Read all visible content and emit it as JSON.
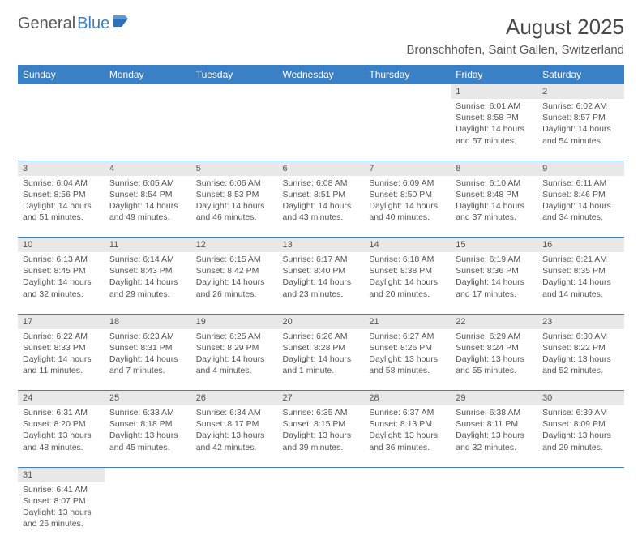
{
  "logo": {
    "text_a": "General",
    "text_b": "Blue"
  },
  "title": "August 2025",
  "location": "Bronschhofen, Saint Gallen, Switzerland",
  "colors": {
    "header_bg": "#3b7fc4",
    "header_text": "#ffffff",
    "daynum_bg": "#e8e8e8",
    "cell_border": "#3b7fc4",
    "body_text": "#555555",
    "page_bg": "#ffffff"
  },
  "day_headers": [
    "Sunday",
    "Monday",
    "Tuesday",
    "Wednesday",
    "Thursday",
    "Friday",
    "Saturday"
  ],
  "weeks": [
    [
      null,
      null,
      null,
      null,
      null,
      {
        "n": "1",
        "sr": "Sunrise: 6:01 AM",
        "ss": "Sunset: 8:58 PM",
        "dl": "Daylight: 14 hours and 57 minutes."
      },
      {
        "n": "2",
        "sr": "Sunrise: 6:02 AM",
        "ss": "Sunset: 8:57 PM",
        "dl": "Daylight: 14 hours and 54 minutes."
      }
    ],
    [
      {
        "n": "3",
        "sr": "Sunrise: 6:04 AM",
        "ss": "Sunset: 8:56 PM",
        "dl": "Daylight: 14 hours and 51 minutes."
      },
      {
        "n": "4",
        "sr": "Sunrise: 6:05 AM",
        "ss": "Sunset: 8:54 PM",
        "dl": "Daylight: 14 hours and 49 minutes."
      },
      {
        "n": "5",
        "sr": "Sunrise: 6:06 AM",
        "ss": "Sunset: 8:53 PM",
        "dl": "Daylight: 14 hours and 46 minutes."
      },
      {
        "n": "6",
        "sr": "Sunrise: 6:08 AM",
        "ss": "Sunset: 8:51 PM",
        "dl": "Daylight: 14 hours and 43 minutes."
      },
      {
        "n": "7",
        "sr": "Sunrise: 6:09 AM",
        "ss": "Sunset: 8:50 PM",
        "dl": "Daylight: 14 hours and 40 minutes."
      },
      {
        "n": "8",
        "sr": "Sunrise: 6:10 AM",
        "ss": "Sunset: 8:48 PM",
        "dl": "Daylight: 14 hours and 37 minutes."
      },
      {
        "n": "9",
        "sr": "Sunrise: 6:11 AM",
        "ss": "Sunset: 8:46 PM",
        "dl": "Daylight: 14 hours and 34 minutes."
      }
    ],
    [
      {
        "n": "10",
        "sr": "Sunrise: 6:13 AM",
        "ss": "Sunset: 8:45 PM",
        "dl": "Daylight: 14 hours and 32 minutes."
      },
      {
        "n": "11",
        "sr": "Sunrise: 6:14 AM",
        "ss": "Sunset: 8:43 PM",
        "dl": "Daylight: 14 hours and 29 minutes."
      },
      {
        "n": "12",
        "sr": "Sunrise: 6:15 AM",
        "ss": "Sunset: 8:42 PM",
        "dl": "Daylight: 14 hours and 26 minutes."
      },
      {
        "n": "13",
        "sr": "Sunrise: 6:17 AM",
        "ss": "Sunset: 8:40 PM",
        "dl": "Daylight: 14 hours and 23 minutes."
      },
      {
        "n": "14",
        "sr": "Sunrise: 6:18 AM",
        "ss": "Sunset: 8:38 PM",
        "dl": "Daylight: 14 hours and 20 minutes."
      },
      {
        "n": "15",
        "sr": "Sunrise: 6:19 AM",
        "ss": "Sunset: 8:36 PM",
        "dl": "Daylight: 14 hours and 17 minutes."
      },
      {
        "n": "16",
        "sr": "Sunrise: 6:21 AM",
        "ss": "Sunset: 8:35 PM",
        "dl": "Daylight: 14 hours and 14 minutes."
      }
    ],
    [
      {
        "n": "17",
        "sr": "Sunrise: 6:22 AM",
        "ss": "Sunset: 8:33 PM",
        "dl": "Daylight: 14 hours and 11 minutes."
      },
      {
        "n": "18",
        "sr": "Sunrise: 6:23 AM",
        "ss": "Sunset: 8:31 PM",
        "dl": "Daylight: 14 hours and 7 minutes."
      },
      {
        "n": "19",
        "sr": "Sunrise: 6:25 AM",
        "ss": "Sunset: 8:29 PM",
        "dl": "Daylight: 14 hours and 4 minutes."
      },
      {
        "n": "20",
        "sr": "Sunrise: 6:26 AM",
        "ss": "Sunset: 8:28 PM",
        "dl": "Daylight: 14 hours and 1 minute."
      },
      {
        "n": "21",
        "sr": "Sunrise: 6:27 AM",
        "ss": "Sunset: 8:26 PM",
        "dl": "Daylight: 13 hours and 58 minutes."
      },
      {
        "n": "22",
        "sr": "Sunrise: 6:29 AM",
        "ss": "Sunset: 8:24 PM",
        "dl": "Daylight: 13 hours and 55 minutes."
      },
      {
        "n": "23",
        "sr": "Sunrise: 6:30 AM",
        "ss": "Sunset: 8:22 PM",
        "dl": "Daylight: 13 hours and 52 minutes."
      }
    ],
    [
      {
        "n": "24",
        "sr": "Sunrise: 6:31 AM",
        "ss": "Sunset: 8:20 PM",
        "dl": "Daylight: 13 hours and 48 minutes."
      },
      {
        "n": "25",
        "sr": "Sunrise: 6:33 AM",
        "ss": "Sunset: 8:18 PM",
        "dl": "Daylight: 13 hours and 45 minutes."
      },
      {
        "n": "26",
        "sr": "Sunrise: 6:34 AM",
        "ss": "Sunset: 8:17 PM",
        "dl": "Daylight: 13 hours and 42 minutes."
      },
      {
        "n": "27",
        "sr": "Sunrise: 6:35 AM",
        "ss": "Sunset: 8:15 PM",
        "dl": "Daylight: 13 hours and 39 minutes."
      },
      {
        "n": "28",
        "sr": "Sunrise: 6:37 AM",
        "ss": "Sunset: 8:13 PM",
        "dl": "Daylight: 13 hours and 36 minutes."
      },
      {
        "n": "29",
        "sr": "Sunrise: 6:38 AM",
        "ss": "Sunset: 8:11 PM",
        "dl": "Daylight: 13 hours and 32 minutes."
      },
      {
        "n": "30",
        "sr": "Sunrise: 6:39 AM",
        "ss": "Sunset: 8:09 PM",
        "dl": "Daylight: 13 hours and 29 minutes."
      }
    ],
    [
      {
        "n": "31",
        "sr": "Sunrise: 6:41 AM",
        "ss": "Sunset: 8:07 PM",
        "dl": "Daylight: 13 hours and 26 minutes."
      },
      null,
      null,
      null,
      null,
      null,
      null
    ]
  ]
}
